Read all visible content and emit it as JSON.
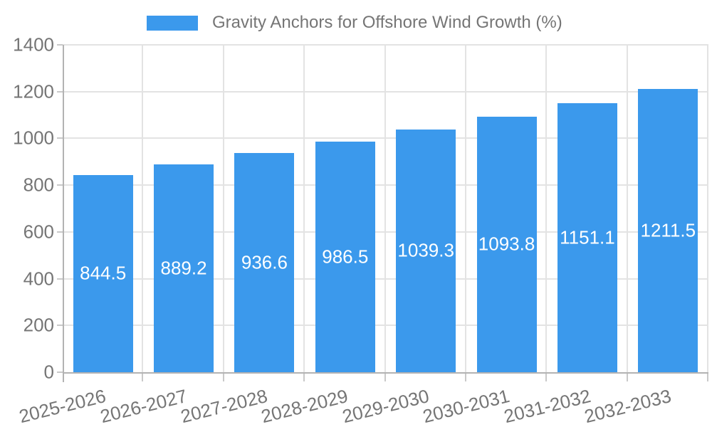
{
  "chart_data": {
    "type": "bar",
    "title": "Gravity Anchors for Offshore Wind Growth (%)",
    "legend": {
      "label": "Gravity Anchors for Offshore Wind Growth (%)",
      "position": "top-center"
    },
    "categories": [
      "2025-2026",
      "2026-2027",
      "2027-2028",
      "2028-2029",
      "2029-2030",
      "2030-2031",
      "2031-2032",
      "2032-2033"
    ],
    "series": [
      {
        "name": "Gravity Anchors for Offshore Wind Growth (%)",
        "values": [
          844.5,
          889.2,
          936.6,
          986.5,
          1039.3,
          1093.8,
          1151.1,
          1211.5
        ]
      }
    ],
    "value_labels": [
      "844.5",
      "889.2",
      "936.6",
      "986.5",
      "1039.3",
      "1093.8",
      "1151.1",
      "1211.5"
    ],
    "xlabel": "",
    "ylabel": "",
    "ylim": [
      0,
      1400
    ],
    "yticks": [
      0,
      200,
      400,
      600,
      800,
      1000,
      1200,
      1400
    ],
    "grid": true,
    "colors": {
      "bar": "#3B99EC",
      "bar_value_label": "#FFFFFF",
      "axis_text": "#757575",
      "grid_line": "#E3E3E3",
      "axis_line": "#B3B3B3",
      "tick_mark": "#C9C9C9",
      "background": "#FFFFFF"
    }
  }
}
